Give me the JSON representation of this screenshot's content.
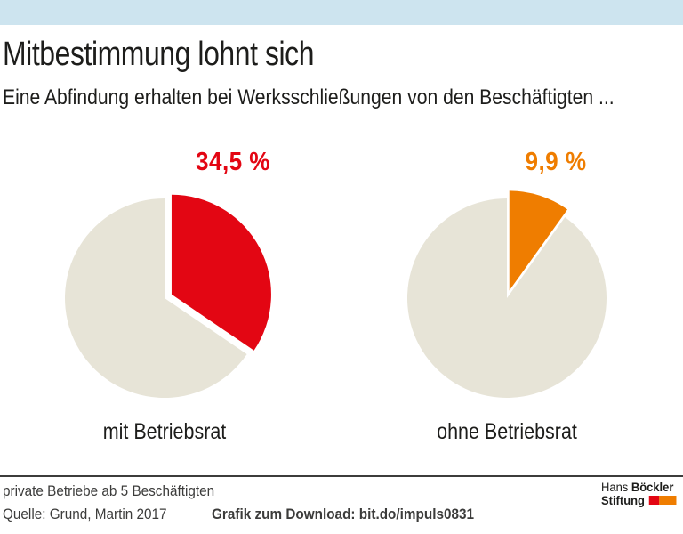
{
  "header": {
    "title": "Mitbestimmung lohnt sich",
    "subtitle": "Eine Abfindung erhalten bei Werksschließungen von den Beschäftigten ..."
  },
  "chart_data": {
    "type": "pie",
    "title": "Eine Abfindung erhalten bei Werksschließungen von den Beschäftigten ...",
    "legend": "none",
    "charts": [
      {
        "label": "mit Betriebsrat",
        "value_label": "34,5 %",
        "value_percent": 34.5,
        "rest_percent": 65.5,
        "slice_color": "#e30613",
        "rest_color": "#e7e4d7",
        "start_angle_deg": -90,
        "exploded": true
      },
      {
        "label": "ohne Betriebsrat",
        "value_label": "9,9 %",
        "value_percent": 9.9,
        "rest_percent": 90.1,
        "slice_color": "#ef7d00",
        "rest_color": "#e7e4d7",
        "start_angle_deg": -90,
        "exploded": true
      }
    ]
  },
  "footer": {
    "note": "private Betriebe ab 5 Beschäftigten",
    "source": "Quelle: Grund, Martin 2017",
    "download": "Grafik zum Download: bit.do/impuls0831",
    "logo": {
      "line1_regular": "Hans ",
      "line1_bold": "Böckler",
      "line2_bold": "Stiftung",
      "block_colors": [
        "#e30613",
        "#ef7d00"
      ]
    }
  },
  "colors": {
    "topbar": "#cde4ef",
    "red": "#e30613",
    "orange": "#ef7d00",
    "pie_rest": "#e7e4d7",
    "text": "#1d1d1b",
    "footer_text": "#3c3c3b"
  }
}
